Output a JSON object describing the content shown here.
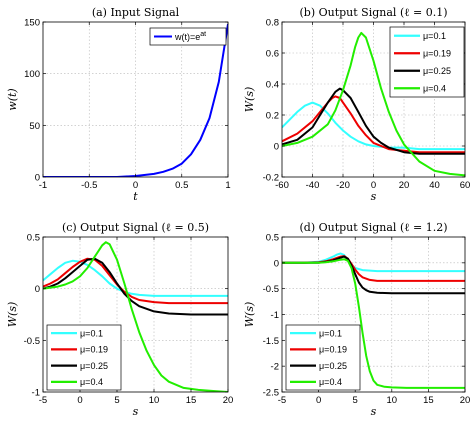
{
  "chart_data": [
    {
      "type": "line",
      "title": "(a) Input Signal",
      "xlabel": "t",
      "ylabel": "w(t)",
      "xlim": [
        -1,
        1
      ],
      "ylim": [
        0,
        150
      ],
      "xticks": [
        -1,
        -0.5,
        0,
        0.5,
        1
      ],
      "xtick_labels": [
        "-1",
        "-0.5",
        "0",
        "0.5",
        "1"
      ],
      "yticks": [
        0,
        50,
        100,
        150
      ],
      "ytick_labels": [
        "0",
        "50",
        "100",
        "150"
      ],
      "grid": true,
      "legend_position": "top-right",
      "series": [
        {
          "name": "w(t)=e^{at}",
          "legend_base": "w(t)=e",
          "legend_sup": "at",
          "color": "#0000ff",
          "x": [
            -1,
            -0.8,
            -0.6,
            -0.4,
            -0.2,
            0,
            0.2,
            0.3,
            0.4,
            0.5,
            0.6,
            0.7,
            0.8,
            0.9,
            1.0
          ],
          "y": [
            0,
            0,
            0,
            0,
            0,
            1,
            3,
            5,
            8,
            13,
            22,
            36,
            57,
            92,
            148
          ]
        }
      ]
    },
    {
      "type": "line",
      "title": "(b) Output Signal (ℓ = 0.1)",
      "xlabel": "s",
      "ylabel": "W(s)",
      "xlim": [
        -60,
        60
      ],
      "ylim": [
        -0.2,
        0.8
      ],
      "xticks": [
        -60,
        -40,
        -20,
        0,
        20,
        40,
        60
      ],
      "xtick_labels": [
        "-60",
        "-40",
        "-20",
        "0",
        "20",
        "40",
        "60"
      ],
      "yticks": [
        -0.2,
        0,
        0.2,
        0.4,
        0.6,
        0.8
      ],
      "ytick_labels": [
        "-0.2",
        "0",
        "0.2",
        "0.4",
        "0.6",
        "0.8"
      ],
      "grid": true,
      "legend_position": "top-right",
      "series": [
        {
          "name": "μ=0.1",
          "color": "#33ffff",
          "x": [
            -60,
            -55,
            -50,
            -45,
            -40,
            -35,
            -30,
            -25,
            -20,
            -15,
            -10,
            -5,
            0,
            10,
            20,
            30,
            40,
            50,
            60
          ],
          "y": [
            0.12,
            0.17,
            0.22,
            0.26,
            0.28,
            0.26,
            0.21,
            0.15,
            0.1,
            0.06,
            0.03,
            0.01,
            0.0,
            -0.01,
            -0.01,
            -0.02,
            -0.02,
            -0.02,
            -0.02
          ]
        },
        {
          "name": "μ=0.19",
          "color": "#ee0000",
          "x": [
            -60,
            -50,
            -40,
            -35,
            -30,
            -27,
            -25,
            -22,
            -20,
            -15,
            -10,
            -5,
            0,
            10,
            20,
            30,
            40,
            50,
            60
          ],
          "y": [
            0.03,
            0.08,
            0.16,
            0.22,
            0.28,
            0.31,
            0.32,
            0.31,
            0.28,
            0.21,
            0.13,
            0.07,
            0.02,
            -0.02,
            -0.03,
            -0.04,
            -0.04,
            -0.04,
            -0.04
          ]
        },
        {
          "name": "μ=0.25",
          "color": "#000000",
          "x": [
            -60,
            -50,
            -40,
            -35,
            -30,
            -25,
            -22,
            -20,
            -15,
            -10,
            -5,
            0,
            5,
            10,
            20,
            30,
            40,
            50,
            60
          ],
          "y": [
            0.01,
            0.04,
            0.12,
            0.2,
            0.28,
            0.35,
            0.37,
            0.36,
            0.31,
            0.22,
            0.13,
            0.06,
            0.02,
            -0.01,
            -0.04,
            -0.05,
            -0.05,
            -0.05,
            -0.05
          ]
        },
        {
          "name": "μ=0.4",
          "color": "#22ee00",
          "x": [
            -60,
            -50,
            -40,
            -30,
            -25,
            -20,
            -15,
            -12,
            -10,
            -8,
            -5,
            0,
            5,
            10,
            15,
            20,
            30,
            40,
            50,
            60
          ],
          "y": [
            0.0,
            0.02,
            0.06,
            0.14,
            0.23,
            0.36,
            0.52,
            0.64,
            0.7,
            0.73,
            0.7,
            0.55,
            0.37,
            0.22,
            0.1,
            0.01,
            -0.1,
            -0.16,
            -0.18,
            -0.19
          ]
        }
      ]
    },
    {
      "type": "line",
      "title": "(c) Output Signal (ℓ = 0.5)",
      "xlabel": "s",
      "ylabel": "W(s)",
      "xlim": [
        -5,
        20
      ],
      "ylim": [
        -1,
        0.5
      ],
      "xticks": [
        -5,
        0,
        5,
        10,
        15,
        20
      ],
      "xtick_labels": [
        "-5",
        "0",
        "5",
        "10",
        "15",
        "20"
      ],
      "yticks": [
        -1,
        -0.5,
        0,
        0.5
      ],
      "ytick_labels": [
        "-1",
        "-0.5",
        "0",
        "0.5"
      ],
      "grid": true,
      "legend_position": "bottom-left",
      "series": [
        {
          "name": "μ=0.1",
          "color": "#33ffff",
          "x": [
            -5,
            -4,
            -3,
            -2,
            -1,
            0,
            1,
            2,
            3,
            4,
            5,
            6,
            7,
            8,
            10,
            12,
            15,
            20
          ],
          "y": [
            0.08,
            0.14,
            0.2,
            0.25,
            0.27,
            0.26,
            0.23,
            0.18,
            0.12,
            0.05,
            0.0,
            -0.03,
            -0.05,
            -0.06,
            -0.07,
            -0.07,
            -0.07,
            -0.07
          ]
        },
        {
          "name": "μ=0.19",
          "color": "#ee0000",
          "x": [
            -5,
            -4,
            -3,
            -2,
            -1,
            0,
            1,
            2,
            3,
            4,
            5,
            6,
            7,
            8,
            10,
            12,
            15,
            20
          ],
          "y": [
            0.02,
            0.05,
            0.09,
            0.15,
            0.21,
            0.26,
            0.29,
            0.28,
            0.22,
            0.13,
            0.04,
            -0.03,
            -0.08,
            -0.11,
            -0.13,
            -0.14,
            -0.14,
            -0.14
          ]
        },
        {
          "name": "μ=0.25",
          "color": "#000000",
          "x": [
            -5,
            -4,
            -3,
            -2,
            -1,
            0,
            1,
            2,
            3,
            4,
            5,
            6,
            7,
            8,
            10,
            12,
            15,
            20
          ],
          "y": [
            0.0,
            0.02,
            0.05,
            0.1,
            0.16,
            0.22,
            0.28,
            0.29,
            0.25,
            0.16,
            0.05,
            -0.05,
            -0.12,
            -0.17,
            -0.22,
            -0.24,
            -0.25,
            -0.25
          ]
        },
        {
          "name": "μ=0.4",
          "color": "#22ee00",
          "x": [
            -5,
            -4,
            -3,
            -2,
            -1,
            0,
            1,
            2,
            3,
            3.5,
            4,
            5,
            6,
            7,
            8,
            9,
            10,
            11,
            12,
            14,
            16,
            18,
            20
          ],
          "y": [
            0.0,
            0.01,
            0.02,
            0.04,
            0.07,
            0.12,
            0.2,
            0.31,
            0.42,
            0.45,
            0.43,
            0.28,
            0.05,
            -0.2,
            -0.42,
            -0.6,
            -0.74,
            -0.84,
            -0.9,
            -0.96,
            -0.98,
            -0.99,
            -1.0
          ]
        }
      ]
    },
    {
      "type": "line",
      "title": "(d) Output Signal (ℓ = 1.2)",
      "xlabel": "s",
      "ylabel": "W(s)",
      "xlim": [
        -5,
        20
      ],
      "ylim": [
        -2.5,
        0.5
      ],
      "xticks": [
        -5,
        0,
        5,
        10,
        15,
        20
      ],
      "xtick_labels": [
        "-5",
        "0",
        "5",
        "10",
        "15",
        "20"
      ],
      "yticks": [
        -2.5,
        -2,
        -1.5,
        -1,
        -0.5,
        0,
        0.5
      ],
      "ytick_labels": [
        "-2.5",
        "-2",
        "-1.5",
        "-1",
        "-0.5",
        "0",
        "0.5"
      ],
      "grid": true,
      "legend_position": "bottom-left",
      "series": [
        {
          "name": "μ=0.1",
          "color": "#33ffff",
          "x": [
            -5,
            -2,
            0,
            1,
            2,
            2.5,
            3,
            3.5,
            4,
            4.5,
            5,
            6,
            8,
            10,
            15,
            20
          ],
          "y": [
            0.0,
            0.0,
            0.02,
            0.06,
            0.12,
            0.16,
            0.18,
            0.15,
            0.06,
            -0.04,
            -0.1,
            -0.14,
            -0.16,
            -0.16,
            -0.16,
            -0.16
          ]
        },
        {
          "name": "μ=0.19",
          "color": "#ee0000",
          "x": [
            -5,
            -2,
            0,
            1,
            2,
            3,
            3.5,
            4,
            4.5,
            5,
            5.5,
            6,
            7,
            8,
            10,
            15,
            20
          ],
          "y": [
            0.0,
            0.0,
            0.01,
            0.03,
            0.07,
            0.12,
            0.13,
            0.08,
            -0.02,
            -0.13,
            -0.22,
            -0.28,
            -0.33,
            -0.35,
            -0.35,
            -0.35,
            -0.35
          ]
        },
        {
          "name": "μ=0.25",
          "color": "#000000",
          "x": [
            -5,
            -2,
            0,
            1,
            2,
            3,
            3.5,
            4,
            4.5,
            5,
            5.5,
            6,
            6.5,
            7,
            8,
            10,
            15,
            20
          ],
          "y": [
            0.0,
            0.0,
            0.0,
            0.02,
            0.05,
            0.1,
            0.12,
            0.08,
            -0.05,
            -0.22,
            -0.38,
            -0.48,
            -0.53,
            -0.56,
            -0.58,
            -0.59,
            -0.59,
            -0.59
          ]
        },
        {
          "name": "μ=0.4",
          "color": "#22ee00",
          "x": [
            -5,
            -2,
            0,
            1,
            2,
            3,
            3.5,
            4,
            4.5,
            5,
            5.5,
            6,
            6.5,
            7,
            7.5,
            8,
            9,
            10,
            12,
            15,
            20
          ],
          "y": [
            0.0,
            0.0,
            0.0,
            0.01,
            0.03,
            0.06,
            0.07,
            0.04,
            -0.1,
            -0.4,
            -0.85,
            -1.35,
            -1.8,
            -2.1,
            -2.28,
            -2.36,
            -2.4,
            -2.41,
            -2.42,
            -2.42,
            -2.42
          ]
        }
      ]
    }
  ]
}
